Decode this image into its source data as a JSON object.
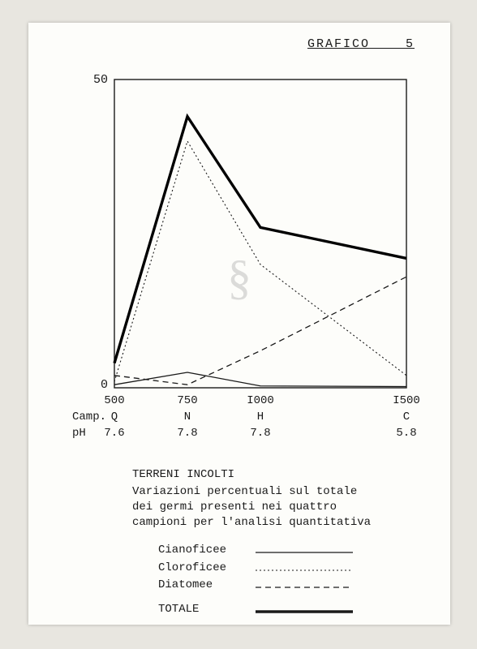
{
  "header": {
    "label": "GRAFICO",
    "number": "5"
  },
  "chart": {
    "type": "line",
    "xlim": [
      500,
      1500
    ],
    "ylim": [
      0,
      50
    ],
    "yticks": [
      0,
      50
    ],
    "x_values": [
      500,
      750,
      1000,
      1500
    ],
    "camp_row_label": "Camp.",
    "camp_labels": [
      "Q",
      "N",
      "H",
      "C"
    ],
    "ph_row_label": "pH",
    "ph_labels": [
      "7.6",
      "7.8",
      "7.8",
      "5.8"
    ],
    "xtick_labels": [
      "500",
      "750",
      "I000",
      "I500"
    ],
    "background_color": "#fdfdfa",
    "axis_color": "#1a1a1a",
    "axis_width": 1.4,
    "series": [
      {
        "name": "Cianoficee",
        "values": [
          0.5,
          2.5,
          0.3,
          0.2
        ],
        "stroke": "#1a1a1a",
        "width": 1.3,
        "dash": ""
      },
      {
        "name": "Cloroficee",
        "values": [
          1.0,
          40,
          20,
          2
        ],
        "stroke": "#1a1a1a",
        "width": 1.1,
        "dash": "2 3"
      },
      {
        "name": "Diatomee",
        "values": [
          2.0,
          0.5,
          6,
          18
        ],
        "stroke": "#1a1a1a",
        "width": 1.3,
        "dash": "7 5"
      },
      {
        "name": "TOTALE",
        "values": [
          4.0,
          44,
          26,
          21
        ],
        "stroke": "#000000",
        "width": 3.4,
        "dash": ""
      }
    ]
  },
  "caption": {
    "title": "TERRENI INCOLTI",
    "lines": [
      "Variazioni percentuali sul totale",
      "dei germi presenti nei quattro",
      "campioni per l'analisi quantitativa"
    ]
  },
  "legend": {
    "items": [
      {
        "label": "Cianoficee",
        "dash": "",
        "width": 1.3
      },
      {
        "label": "Cloroficee",
        "dash": "2 3",
        "width": 1.1
      },
      {
        "label": "Diatomee",
        "dash": "7 5",
        "width": 1.3
      },
      {
        "label": "TOTALE",
        "dash": "",
        "width": 3.4
      }
    ]
  },
  "watermark": "§"
}
